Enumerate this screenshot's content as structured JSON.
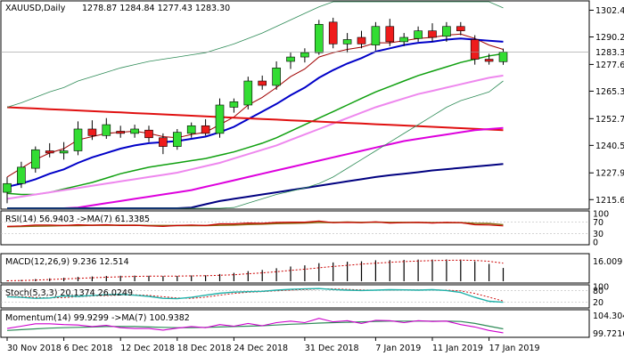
{
  "chart_data": {
    "type": "candlestick",
    "symbol": "XAUUSD",
    "timeframe": "Daily",
    "header": {
      "symbol_label": "XAUUSD,Daily",
      "ohlc_label": "1278.87 1284.84 1277.43 1283.30"
    },
    "current_price_label": "1283.30",
    "price_ticks": [
      "1302.45",
      "1290.20",
      "1277.60",
      "1265.35",
      "1252.75",
      "1240.50",
      "1227.90",
      "1215.65"
    ],
    "price_tick_values": [
      1302.45,
      1290.2,
      1277.6,
      1265.35,
      1252.75,
      1240.5,
      1227.9,
      1215.65
    ],
    "price_range": [
      1212.5,
      1305.5
    ],
    "date_labels": [
      {
        "text": "30 Nov 2018",
        "bar": 0
      },
      {
        "text": "6 Dec 2018",
        "bar": 4
      },
      {
        "text": "12 Dec 2018",
        "bar": 8
      },
      {
        "text": "18 Dec 2018",
        "bar": 12
      },
      {
        "text": "24 Dec 2018",
        "bar": 16
      },
      {
        "text": "31 Dec 2018",
        "bar": 21
      },
      {
        "text": "7 Jan 2019",
        "bar": 26
      },
      {
        "text": "11 Jan 2019",
        "bar": 30
      },
      {
        "text": "17 Jan 2019",
        "bar": 34
      }
    ],
    "candles": [
      {
        "o": 1219.0,
        "h": 1226.0,
        "l": 1214.0,
        "c": 1223.0
      },
      {
        "o": 1223.0,
        "h": 1233.0,
        "l": 1221.0,
        "c": 1230.5
      },
      {
        "o": 1230.0,
        "h": 1240.0,
        "l": 1228.0,
        "c": 1238.5
      },
      {
        "o": 1238.0,
        "h": 1241.5,
        "l": 1235.0,
        "c": 1237.0
      },
      {
        "o": 1237.0,
        "h": 1242.0,
        "l": 1234.0,
        "c": 1238.0
      },
      {
        "o": 1238.0,
        "h": 1251.5,
        "l": 1236.0,
        "c": 1248.0
      },
      {
        "o": 1248.0,
        "h": 1252.0,
        "l": 1243.0,
        "c": 1245.0
      },
      {
        "o": 1245.0,
        "h": 1253.0,
        "l": 1243.5,
        "c": 1250.0
      },
      {
        "o": 1247.0,
        "h": 1249.5,
        "l": 1244.0,
        "c": 1246.0
      },
      {
        "o": 1246.0,
        "h": 1250.0,
        "l": 1244.0,
        "c": 1248.0
      },
      {
        "o": 1247.5,
        "h": 1249.5,
        "l": 1242.0,
        "c": 1244.0
      },
      {
        "o": 1244.0,
        "h": 1246.0,
        "l": 1236.5,
        "c": 1240.0
      },
      {
        "o": 1240.0,
        "h": 1248.0,
        "l": 1238.5,
        "c": 1246.5
      },
      {
        "o": 1246.0,
        "h": 1251.0,
        "l": 1244.0,
        "c": 1249.5
      },
      {
        "o": 1249.5,
        "h": 1252.5,
        "l": 1245.0,
        "c": 1246.0
      },
      {
        "o": 1246.0,
        "h": 1262.0,
        "l": 1244.0,
        "c": 1259.0
      },
      {
        "o": 1258.0,
        "h": 1262.0,
        "l": 1255.5,
        "c": 1260.5
      },
      {
        "o": 1259.0,
        "h": 1272.0,
        "l": 1257.0,
        "c": 1270.0
      },
      {
        "o": 1270.0,
        "h": 1272.5,
        "l": 1266.0,
        "c": 1268.0
      },
      {
        "o": 1268.0,
        "h": 1279.0,
        "l": 1266.0,
        "c": 1276.0
      },
      {
        "o": 1279.0,
        "h": 1283.0,
        "l": 1275.5,
        "c": 1281.0
      },
      {
        "o": 1281.0,
        "h": 1285.0,
        "l": 1278.5,
        "c": 1283.0
      },
      {
        "o": 1283.0,
        "h": 1298.0,
        "l": 1282.0,
        "c": 1296.0
      },
      {
        "o": 1297.0,
        "h": 1299.0,
        "l": 1285.0,
        "c": 1287.0
      },
      {
        "o": 1287.0,
        "h": 1292.0,
        "l": 1283.0,
        "c": 1289.0
      },
      {
        "o": 1290.0,
        "h": 1293.0,
        "l": 1285.0,
        "c": 1287.0
      },
      {
        "o": 1286.5,
        "h": 1297.0,
        "l": 1284.0,
        "c": 1295.0
      },
      {
        "o": 1295.0,
        "h": 1298.5,
        "l": 1286.0,
        "c": 1288.0
      },
      {
        "o": 1288.0,
        "h": 1292.0,
        "l": 1286.0,
        "c": 1290.0
      },
      {
        "o": 1289.5,
        "h": 1295.0,
        "l": 1288.0,
        "c": 1293.0
      },
      {
        "o": 1293.0,
        "h": 1296.5,
        "l": 1288.0,
        "c": 1290.0
      },
      {
        "o": 1290.5,
        "h": 1297.0,
        "l": 1288.0,
        "c": 1295.0
      },
      {
        "o": 1295.0,
        "h": 1297.0,
        "l": 1291.0,
        "c": 1293.0
      },
      {
        "o": 1289.0,
        "h": 1291.0,
        "l": 1277.5,
        "c": 1280.0
      },
      {
        "o": 1280.0,
        "h": 1282.5,
        "l": 1277.5,
        "c": 1279.0
      },
      {
        "o": 1278.87,
        "h": 1284.84,
        "l": 1277.43,
        "c": 1283.3
      }
    ],
    "overlays": [
      {
        "color": "#a00000",
        "width": 1.0,
        "values": [
          1226.0,
          1230.0,
          1234.0,
          1237.0,
          1239.0,
          1243.0,
          1244.5,
          1246.0,
          1246.5,
          1247.0,
          1246.0,
          1244.5,
          1244.0,
          1245.5,
          1246.5,
          1250.0,
          1253.5,
          1259.0,
          1262.5,
          1267.0,
          1272.0,
          1275.5,
          1281.0,
          1283.0,
          1284.5,
          1285.5,
          1287.5,
          1287.5,
          1288.5,
          1289.5,
          1290.0,
          1291.0,
          1291.5,
          1289.5,
          1286.5,
          1284.5
        ]
      },
      {
        "color": "#0000c8",
        "width": 2.0,
        "values": [
          1221.5,
          1223.0,
          1225.0,
          1227.5,
          1229.5,
          1232.5,
          1235.0,
          1237.0,
          1239.0,
          1240.5,
          1241.5,
          1242.0,
          1242.5,
          1243.5,
          1244.5,
          1246.5,
          1249.0,
          1252.5,
          1256.0,
          1259.5,
          1263.5,
          1267.0,
          1271.5,
          1275.0,
          1278.0,
          1280.5,
          1283.5,
          1285.0,
          1286.5,
          1287.5,
          1288.0,
          1289.0,
          1289.5,
          1289.0,
          1288.5,
          1288.0
        ]
      },
      {
        "color": "#10a010",
        "width": 1.5,
        "values": [
          1218.5,
          1218.0,
          1218.0,
          1219.0,
          1220.5,
          1222.0,
          1223.5,
          1225.5,
          1227.5,
          1229.0,
          1230.5,
          1231.5,
          1232.5,
          1233.5,
          1234.5,
          1236.0,
          1237.5,
          1239.5,
          1241.5,
          1244.0,
          1247.0,
          1250.0,
          1253.0,
          1256.0,
          1259.0,
          1262.0,
          1265.0,
          1267.5,
          1270.0,
          1272.5,
          1274.5,
          1276.5,
          1278.5,
          1280.0,
          1281.5,
          1282.5
        ]
      },
      {
        "color": "#ee88ee",
        "width": 2.0,
        "values": [
          1216.0,
          1217.0,
          1218.0,
          1219.0,
          1220.0,
          1221.0,
          1222.0,
          1223.0,
          1224.0,
          1225.0,
          1226.0,
          1227.0,
          1228.0,
          1229.5,
          1231.0,
          1232.5,
          1234.5,
          1236.5,
          1238.5,
          1240.5,
          1243.0,
          1245.5,
          1248.0,
          1250.5,
          1253.0,
          1255.5,
          1258.0,
          1260.0,
          1262.0,
          1264.0,
          1265.5,
          1267.0,
          1268.5,
          1270.0,
          1271.5,
          1272.5
        ]
      },
      {
        "color": "#e01010",
        "width": 2.0,
        "values": [
          1258.0,
          1257.7,
          1257.4,
          1257.1,
          1256.8,
          1256.5,
          1256.2,
          1255.9,
          1255.6,
          1255.3,
          1255.0,
          1254.7,
          1254.4,
          1254.1,
          1253.8,
          1253.5,
          1253.2,
          1252.9,
          1252.6,
          1252.3,
          1252.0,
          1251.7,
          1251.4,
          1251.1,
          1250.8,
          1250.5,
          1250.2,
          1249.9,
          1249.6,
          1249.3,
          1249.0,
          1248.7,
          1248.4,
          1248.1,
          1247.8,
          1247.5
        ]
      },
      {
        "color": "#dd00dd",
        "width": 2.0,
        "values": [
          1207.0,
          1208.0,
          1209.0,
          1210.0,
          1211.0,
          1212.0,
          1213.0,
          1214.0,
          1215.0,
          1216.0,
          1217.0,
          1218.0,
          1219.0,
          1220.0,
          1221.5,
          1223.0,
          1224.5,
          1226.0,
          1227.5,
          1229.0,
          1230.5,
          1232.0,
          1233.5,
          1235.0,
          1236.5,
          1238.0,
          1239.5,
          1241.0,
          1242.5,
          1243.5,
          1244.5,
          1245.5,
          1246.5,
          1247.5,
          1248.0,
          1248.5
        ]
      },
      {
        "color": "#000080",
        "width": 2.0,
        "values": [
          1195.0,
          1196.0,
          1197.0,
          1198.0,
          1199.0,
          1200.0,
          1201.5,
          1203.0,
          1204.5,
          1206.0,
          1207.5,
          1209.0,
          1210.5,
          1212.0,
          1213.5,
          1215.0,
          1216.0,
          1217.0,
          1218.0,
          1219.0,
          1220.0,
          1221.0,
          1222.0,
          1223.0,
          1224.0,
          1225.0,
          1226.0,
          1226.8,
          1227.5,
          1228.2,
          1229.0,
          1229.6,
          1230.2,
          1230.8,
          1231.4,
          1232.0
        ]
      },
      {
        "color": "#2e8b57",
        "width": 0.8,
        "values": [
          1180.0,
          1182.0,
          1184.0,
          1186.0,
          1188.0,
          1190.0,
          1192.0,
          1194.0,
          1196.0,
          1198.0,
          1200.0,
          1202.0,
          1204.0,
          1206.0,
          1208.0,
          1210.0,
          1212.0,
          1214.0,
          1216.0,
          1218.0,
          1219.5,
          1221.0,
          1223.0,
          1226.0,
          1230.0,
          1234.0,
          1238.0,
          1242.0,
          1246.0,
          1250.0,
          1254.0,
          1258.0,
          1261.0,
          1263.0,
          1265.0,
          1270.0
        ]
      },
      {
        "color": "#2e8b57",
        "width": 0.8,
        "values": [
          1258.0,
          1260.0,
          1262.5,
          1265.0,
          1267.0,
          1270.0,
          1272.0,
          1274.0,
          1276.0,
          1277.5,
          1279.0,
          1280.0,
          1281.0,
          1282.0,
          1283.0,
          1285.0,
          1287.0,
          1289.5,
          1292.0,
          1295.0,
          1298.0,
          1301.0,
          1304.0,
          1307.0,
          1309.0,
          1311.0,
          1313.0,
          1314.0,
          1315.0,
          1315.5,
          1315.5,
          1315.0,
          1314.0,
          1312.0,
          1308.0,
          1303.5
        ]
      }
    ],
    "rsi": {
      "label": "RSI(14) 56.9403  ->MA(7) 61.3385",
      "ticks": [
        "100",
        "70",
        "30",
        "0"
      ],
      "tick_values": [
        100,
        70,
        30,
        0
      ],
      "range": [
        0,
        100
      ],
      "values": [
        55,
        57,
        60,
        60,
        58,
        61,
        59,
        61,
        58,
        59,
        57,
        55,
        58,
        60,
        58,
        64,
        64,
        67,
        66,
        69,
        70,
        70,
        74,
        68,
        69,
        68,
        71,
        67,
        68,
        69,
        67,
        69,
        68,
        61,
        60,
        57
      ],
      "ma": [
        54,
        55,
        56,
        57,
        58,
        58,
        59,
        59,
        59,
        59,
        58,
        58,
        58,
        58,
        58,
        59,
        60,
        62,
        63,
        65,
        66,
        67,
        69,
        69,
        70,
        69,
        70,
        69,
        69,
        69,
        68,
        68,
        68,
        66,
        65,
        61
      ]
    },
    "macd": {
      "label": "MACD(12,26,9) 9.236 12.514",
      "tick_label": "16.009",
      "range": [
        0,
        16.009
      ],
      "hist": [
        0.5,
        0.9,
        1.5,
        2.0,
        2.4,
        3.0,
        3.3,
        3.7,
        3.8,
        3.9,
        3.8,
        3.6,
        3.7,
        4.0,
        4.1,
        5.0,
        5.8,
        7.0,
        7.8,
        9.0,
        10.2,
        11.0,
        12.5,
        13.0,
        13.5,
        13.8,
        14.5,
        14.6,
        14.8,
        15.0,
        15.0,
        15.1,
        15.0,
        13.8,
        12.0,
        9.2
      ],
      "signal": [
        0.3,
        0.5,
        0.8,
        1.2,
        1.6,
        2.0,
        2.4,
        2.8,
        3.1,
        3.3,
        3.5,
        3.6,
        3.6,
        3.7,
        3.8,
        4.1,
        4.5,
        5.2,
        5.8,
        6.6,
        7.5,
        8.3,
        9.3,
        10.2,
        11.0,
        11.8,
        12.5,
        13.1,
        13.6,
        14.0,
        14.3,
        14.5,
        14.6,
        14.4,
        13.8,
        12.5
      ]
    },
    "stoch": {
      "label": "Stoch(5,3,3) 20.1374 26.0249",
      "ticks": [
        "100",
        "80",
        "20"
      ],
      "tick_values": [
        100,
        80,
        20
      ],
      "range": [
        0,
        100
      ],
      "k": [
        48,
        45,
        40,
        42,
        52,
        50,
        54,
        58,
        60,
        56,
        50,
        40,
        38,
        45,
        56,
        66,
        72,
        74,
        76,
        82,
        86,
        88,
        90,
        85,
        82,
        80,
        82,
        84,
        83,
        82,
        84,
        80,
        70,
        45,
        25,
        20
      ],
      "d": [
        50,
        48,
        45,
        42,
        44,
        48,
        52,
        54,
        57,
        58,
        55,
        48,
        42,
        40,
        46,
        56,
        65,
        71,
        74,
        78,
        82,
        85,
        88,
        88,
        86,
        83,
        82,
        82,
        83,
        83,
        83,
        82,
        78,
        65,
        46,
        26
      ]
    },
    "momentum": {
      "label": "Momentum(14) 99.9299  ->MA(7) 100.9382",
      "ticks": [
        "104.3047",
        "99.7216"
      ],
      "tick_values": [
        104.3047,
        99.7216
      ],
      "range": [
        99.2,
        104.9
      ],
      "values": [
        101.0,
        101.6,
        102.2,
        102.2,
        102.0,
        101.9,
        101.5,
        101.8,
        101.2,
        101.0,
        101.0,
        100.6,
        101.1,
        101.5,
        101.2,
        102.0,
        101.6,
        102.3,
        101.7,
        102.5,
        102.9,
        102.5,
        103.6,
        102.7,
        103.0,
        102.3,
        103.1,
        103.0,
        102.5,
        103.0,
        102.8,
        102.9,
        102.0,
        101.4,
        100.5,
        99.9
      ],
      "ma": [
        100.5,
        100.7,
        100.9,
        101.1,
        101.2,
        101.3,
        101.4,
        101.5,
        101.5,
        101.5,
        101.4,
        101.3,
        101.2,
        101.2,
        101.3,
        101.4,
        101.5,
        101.6,
        101.7,
        101.9,
        102.1,
        102.2,
        102.4,
        102.5,
        102.6,
        102.7,
        102.8,
        102.9,
        102.9,
        102.9,
        102.9,
        102.9,
        102.8,
        102.3,
        101.6,
        100.9
      ]
    },
    "colors": {
      "bull_fill": "#33dd33",
      "bear_fill": "#ee1c1c",
      "candle_outline": "#000000",
      "rsi_line": "#cc0000",
      "rsi_ma": "#8b6914",
      "macd_hist": "#000000",
      "macd_signal": "#cc0000",
      "stoch_k": "#20b2aa",
      "stoch_d": "#cc0000",
      "mom_line": "#cc00cc",
      "mom_ma": "#2e8b57"
    }
  }
}
